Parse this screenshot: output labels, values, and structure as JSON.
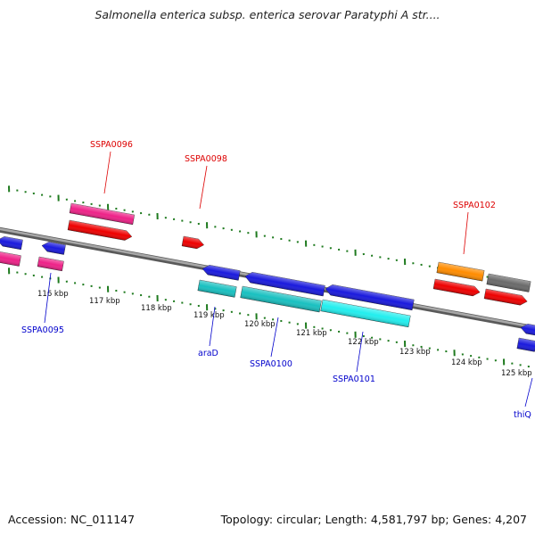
{
  "title": "Salmonella enterica subsp. enterica serovar Paratyphi A str....",
  "footer": {
    "accession": "Accession: NC_011147",
    "topology": "Topology: circular; Length: 4,581,797 bp; Genes: 4,207"
  },
  "colors": {
    "backbone": "#808080",
    "tick_major": "#1e7a1e",
    "tick_minor": "#1e7a1e",
    "label_top": "#dd0000",
    "label_bottom": "#0000cc",
    "blue": "#1a1add",
    "magenta": "#ee2288",
    "red": "#ee0000",
    "cyan": "#19c0c0",
    "cyan_light": "#22eeee",
    "orange": "#ff8c00",
    "grey": "#6a6a6a"
  },
  "scale_labels": [
    "116 kbp",
    "117 kbp",
    "118 kbp",
    "119 kbp",
    "120 kbp",
    "121 kbp",
    "122 kbp",
    "123 kbp",
    "124 kbp",
    "125 kbp"
  ],
  "gene_labels": {
    "top": [
      "SSPA0096",
      "SSPA0098",
      "SSPA0102"
    ],
    "bottom": [
      "SSPA0095",
      "araD",
      "SSPA0100",
      "SSPA0101",
      "thiQ"
    ]
  }
}
